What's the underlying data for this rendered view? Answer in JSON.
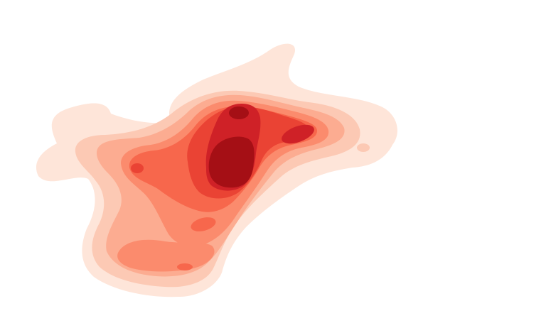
{
  "chart_data": {
    "type": "kde-contour",
    "title": "",
    "xlabel": "",
    "ylabel": "",
    "axes_visible": false,
    "grid": false,
    "legend": "none",
    "colormap": "Reds",
    "levels": [
      1,
      2,
      3,
      4,
      5,
      6,
      7,
      8
    ],
    "level_colors": [
      "#fee5d9",
      "#fcc9b4",
      "#fcac91",
      "#fb8b6d",
      "#f7674c",
      "#ea4334",
      "#cf2127",
      "#a50f15"
    ]
  }
}
